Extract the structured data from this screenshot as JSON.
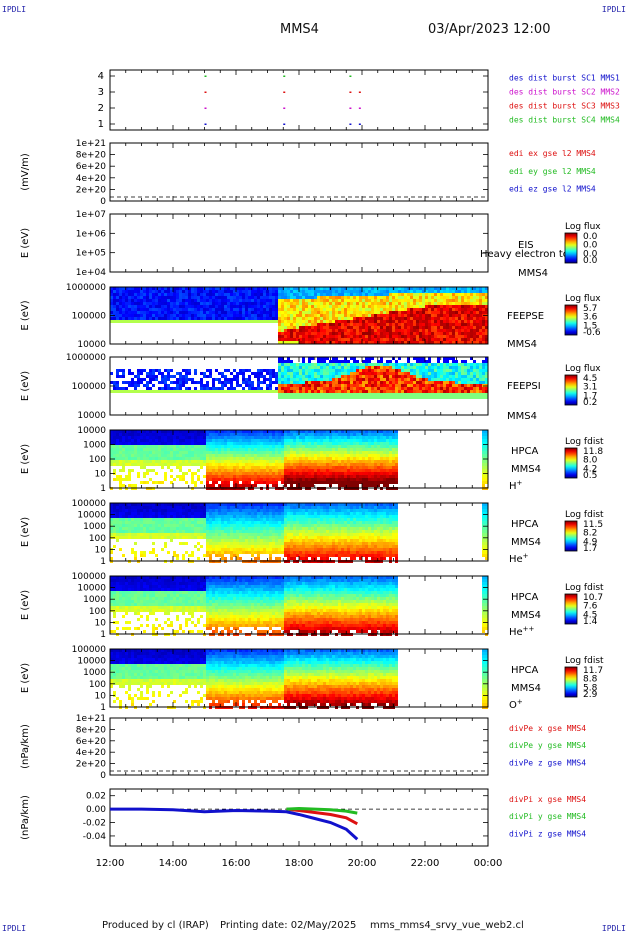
{
  "corner_label": "IPDLI",
  "header": {
    "spacecraft": "MMS4",
    "datetime": "03/Apr/2023 12:00"
  },
  "footer": {
    "produced_by": "Produced by cl (IRAP)",
    "printing_date": "Printing date: 02/May/2025",
    "script": "mms_mms4_srvy_vue_web2.cl"
  },
  "colors": {
    "red": "#dd1111",
    "green": "#22bb22",
    "blue": "#1111cc",
    "magenta": "#cc11cc",
    "black": "#000000"
  },
  "chart_data": {
    "type": "heatmap",
    "x_ticks": [
      "12:00",
      "14:00",
      "16:00",
      "18:00",
      "20:00",
      "22:00",
      "00:00"
    ],
    "x_range_hours": [
      12,
      24
    ],
    "panels": [
      {
        "id": "burst",
        "type": "scatter",
        "yticks": [
          "4",
          "3",
          "2",
          "1"
        ],
        "legend": [
          {
            "text": "des dist burst SC1 MMS1",
            "color": "#1111cc"
          },
          {
            "text": "des dist burst SC2 MMS2",
            "color": "#cc11cc"
          },
          {
            "text": "des dist burst SC3 MMS3",
            "color": "#dd1111"
          },
          {
            "text": "des dist burst SC4 MMS4",
            "color": "#22bb22"
          }
        ],
        "points": [
          {
            "x": 15.0,
            "y": 4
          },
          {
            "x": 15.0,
            "y": 3
          },
          {
            "x": 15.0,
            "y": 2
          },
          {
            "x": 15.0,
            "y": 1
          },
          {
            "x": 17.5,
            "y": 4
          },
          {
            "x": 17.5,
            "y": 3
          },
          {
            "x": 17.5,
            "y": 2
          },
          {
            "x": 17.5,
            "y": 1
          },
          {
            "x": 19.6,
            "y": 4
          },
          {
            "x": 19.6,
            "y": 3
          },
          {
            "x": 19.6,
            "y": 2
          },
          {
            "x": 19.6,
            "y": 1
          },
          {
            "x": 19.9,
            "y": 3
          },
          {
            "x": 19.9,
            "y": 2
          },
          {
            "x": 19.9,
            "y": 1
          }
        ]
      },
      {
        "id": "edi",
        "type": "line",
        "ylabel": "(mV/m)",
        "yticks": [
          "1e+21",
          "8e+20",
          "6e+20",
          "4e+20",
          "2e+20",
          "0"
        ],
        "legend": [
          {
            "text": "edi ex gse l2 MMS4",
            "color": "#dd1111"
          },
          {
            "text": "edi ey gse l2 MMS4",
            "color": "#22bb22"
          },
          {
            "text": "edi ez gse l2 MMS4",
            "color": "#1111cc"
          }
        ]
      },
      {
        "id": "eis",
        "type": "heatmap",
        "ylabel": "E (eV)",
        "yticks": [
          "1e+07",
          "1e+06",
          "1e+05",
          "1e+04"
        ],
        "instrument": "EIS",
        "spacecraft": "MMS4",
        "overlap_text": "Heavy electron to",
        "cbar_title": "Log flux",
        "cbar_ticks": [
          "0.0",
          "0.0",
          "0.0",
          "0.0"
        ]
      },
      {
        "id": "feepse",
        "type": "heatmap",
        "ylabel": "E (eV)",
        "yticks": [
          "1000000",
          "100000",
          "10000"
        ],
        "instrument": "FEEPSE",
        "spacecraft": "MMS4",
        "cbar_title": "Log flux",
        "cbar_ticks": [
          "5.7",
          "3.6",
          "1.5",
          "-0.6"
        ]
      },
      {
        "id": "feepsi",
        "type": "heatmap",
        "ylabel": "E (eV)",
        "yticks": [
          "1000000",
          "100000",
          "10000"
        ],
        "instrument": "FEEPSI",
        "spacecraft": "MMS4",
        "cbar_title": "Log flux",
        "cbar_ticks": [
          "4.5",
          "3.1",
          "1.7",
          "0.2"
        ]
      },
      {
        "id": "hpca_h",
        "type": "heatmap",
        "ylabel": "E (eV)",
        "yticks": [
          "10000",
          "1000",
          "100",
          "10",
          "1"
        ],
        "instrument": "HPCA",
        "spacecraft": "MMS4",
        "species": "H",
        "species_sup": "+",
        "cbar_title": "Log fdist",
        "cbar_ticks": [
          "11.8",
          "8.0",
          "4.2",
          "0.5"
        ]
      },
      {
        "id": "hpca_he",
        "type": "heatmap",
        "ylabel": "E (eV)",
        "yticks": [
          "100000",
          "10000",
          "1000",
          "100",
          "10",
          "1"
        ],
        "instrument": "HPCA",
        "spacecraft": "MMS4",
        "species": "He",
        "species_sup": "+",
        "cbar_title": "Log fdist",
        "cbar_ticks": [
          "11.5",
          "8.2",
          "4.9",
          "1.7"
        ]
      },
      {
        "id": "hpca_he2",
        "type": "heatmap",
        "ylabel": "E (eV)",
        "yticks": [
          "100000",
          "10000",
          "1000",
          "100",
          "10",
          "1"
        ],
        "instrument": "HPCA",
        "spacecraft": "MMS4",
        "species": "He",
        "species_sup": "++",
        "cbar_title": "Log fdist",
        "cbar_ticks": [
          "10.7",
          "7.6",
          "4.5",
          "1.4"
        ]
      },
      {
        "id": "hpca_o",
        "type": "heatmap",
        "ylabel": "E (eV)",
        "yticks": [
          "100000",
          "10000",
          "1000",
          "100",
          "10",
          "1"
        ],
        "instrument": "HPCA",
        "spacecraft": "MMS4",
        "species": "O",
        "species_sup": "+",
        "cbar_title": "Log fdist",
        "cbar_ticks": [
          "11.7",
          "8.8",
          "5.8",
          "2.9"
        ]
      },
      {
        "id": "divpe",
        "type": "line",
        "ylabel": "(nPa/km)",
        "yticks": [
          "1e+21",
          "8e+20",
          "6e+20",
          "4e+20",
          "2e+20",
          "0"
        ],
        "legend": [
          {
            "text": "divPe x gse MMS4",
            "color": "#dd1111"
          },
          {
            "text": "divPe y gse MMS4",
            "color": "#22bb22"
          },
          {
            "text": "divPe z gse MMS4",
            "color": "#1111cc"
          }
        ]
      },
      {
        "id": "divpi",
        "type": "line",
        "ylabel": "(nPa/km)",
        "yticks": [
          "0.02",
          "0.00",
          "-0.02",
          "-0.04"
        ],
        "ylim": [
          -0.055,
          0.03
        ],
        "legend": [
          {
            "text": "divPi x gse MMS4",
            "color": "#dd1111"
          },
          {
            "text": "divPi y gse MMS4",
            "color": "#22bb22"
          },
          {
            "text": "divPi z gse MMS4",
            "color": "#1111cc"
          }
        ],
        "series": [
          {
            "color": "#dd1111",
            "x": [
              17.6,
              18.0,
              18.5,
              19.0,
              19.5,
              19.85
            ],
            "y": [
              0.0,
              -0.002,
              -0.005,
              -0.008,
              -0.013,
              -0.022
            ]
          },
          {
            "color": "#22bb22",
            "x": [
              17.6,
              18.0,
              18.5,
              19.0,
              19.5,
              19.85
            ],
            "y": [
              0.0,
              0.001,
              0.0,
              -0.001,
              -0.003,
              -0.006
            ]
          },
          {
            "color": "#1111cc",
            "x": [
              12.0,
              13.0,
              14.0,
              15.0,
              16.0,
              17.0,
              17.6,
              18.0,
              18.5,
              19.0,
              19.5,
              19.85
            ],
            "y": [
              0.0,
              0.0,
              -0.001,
              -0.004,
              -0.002,
              -0.003,
              -0.004,
              -0.008,
              -0.014,
              -0.02,
              -0.03,
              -0.045
            ]
          }
        ]
      }
    ]
  }
}
